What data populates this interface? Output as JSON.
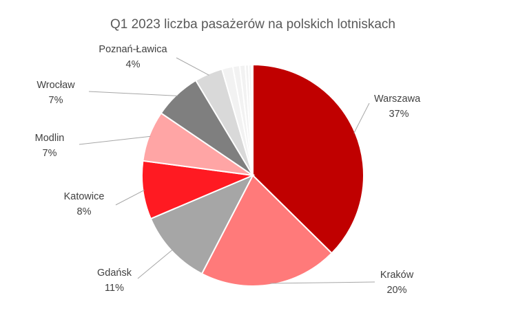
{
  "chart_data": {
    "type": "pie",
    "title": "Q1 2023 liczba pasażerów na polskich lotniskach",
    "slices": [
      {
        "name": "Warszawa",
        "label": "Warszawa",
        "percent_label": "37%",
        "value": 37.4,
        "color": "#C00000"
      },
      {
        "name": "Kraków",
        "label": "Kraków",
        "percent_label": "20%",
        "value": 20.2,
        "color": "#FF7A7A"
      },
      {
        "name": "Gdańsk",
        "label": "Gdańsk",
        "percent_label": "11%",
        "value": 11.0,
        "color": "#A6A6A6"
      },
      {
        "name": "Katowice",
        "label": "Katowice",
        "percent_label": "8%",
        "value": 8.5,
        "color": "#FF1A22"
      },
      {
        "name": "Modlin",
        "label": "Modlin",
        "percent_label": "7%",
        "value": 7.4,
        "color": "#FFA5A5"
      },
      {
        "name": "Wrocław",
        "label": "Wrocław",
        "percent_label": "7%",
        "value": 6.9,
        "color": "#7F7F7F"
      },
      {
        "name": "Poznań-Ławica",
        "label": "Poznań-Ławica",
        "percent_label": "4%",
        "value": 4.1,
        "color": "#D9D9D9"
      },
      {
        "name": "",
        "label": "",
        "percent_label": "",
        "value": 1.6,
        "color": "#F2F2F2"
      },
      {
        "name": "",
        "label": "",
        "percent_label": "",
        "value": 1.0,
        "color": "#F2F2F2"
      },
      {
        "name": "",
        "label": "",
        "percent_label": "",
        "value": 0.8,
        "color": "#F2F2F2"
      },
      {
        "name": "",
        "label": "",
        "percent_label": "",
        "value": 0.5,
        "color": "#F2F2F2"
      },
      {
        "name": "",
        "label": "",
        "percent_label": "",
        "value": 0.4,
        "color": "#F2F2F2"
      },
      {
        "name": "",
        "label": "",
        "percent_label": "",
        "value": 0.2,
        "color": "#F2F2F2"
      }
    ],
    "legend": "none",
    "data_labels": "outside with leader lines"
  }
}
